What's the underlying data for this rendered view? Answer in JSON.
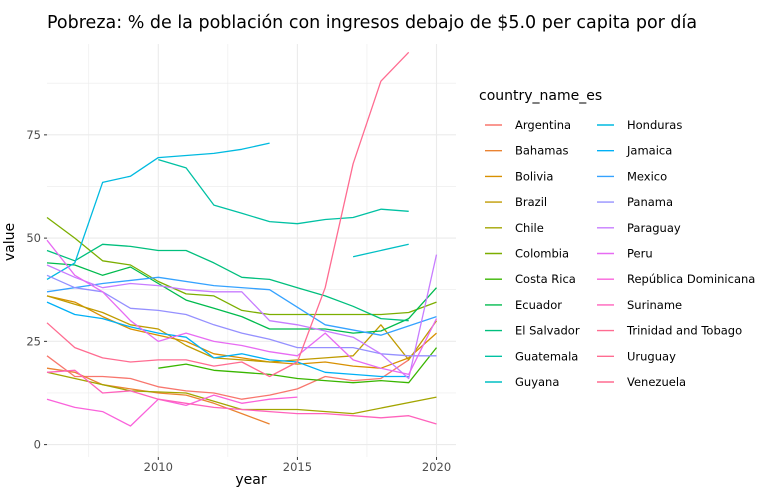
{
  "chart_data": {
    "type": "line",
    "title": "Pobreza: % de la población con ingresos debajo de $5.0 per capita por día",
    "xlabel": "year",
    "ylabel": "value",
    "xlim": [
      2006,
      2020.7
    ],
    "ylim": [
      -3,
      97
    ],
    "x_ticks": [
      2010,
      2015,
      2020
    ],
    "y_ticks": [
      0,
      25,
      50,
      75
    ],
    "legend_title": "country_name_es",
    "series": [
      {
        "name": "Argentina",
        "color": "#F8766D",
        "x": [
          2006,
          2007,
          2008,
          2009,
          2010,
          2011,
          2012,
          2013,
          2014,
          2015,
          2016,
          2017,
          2018,
          2019
        ],
        "y": [
          21.5,
          16.5,
          16.5,
          16.0,
          14.0,
          13.0,
          12.5,
          11.0,
          12.0,
          13.5,
          16.5,
          15.5,
          16.0,
          20.5
        ]
      },
      {
        "name": "Bahamas",
        "color": "#EA8331",
        "x": [
          2006,
          2007,
          2008,
          2009,
          2010,
          2011,
          2012,
          2013,
          2014
        ],
        "y": [
          18.5,
          17.5,
          14.5,
          13.5,
          12.5,
          12.0,
          10.0,
          7.5,
          5.0
        ]
      },
      {
        "name": "Bolivia",
        "color": "#D89000",
        "x": [
          2006,
          2007,
          2008,
          2009,
          2010,
          2011,
          2012,
          2013,
          2014,
          2015,
          2016,
          2017,
          2018,
          2019,
          2020
        ],
        "y": [
          36.0,
          34.5,
          31.0,
          28.0,
          26.5,
          25.0,
          22.0,
          21.0,
          20.0,
          19.5,
          20.0,
          19.0,
          18.5,
          21.0,
          27.0
        ]
      },
      {
        "name": "Brazil",
        "color": "#C09B00",
        "x": [
          2006,
          2007,
          2008,
          2009,
          2010,
          2011,
          2012,
          2013,
          2014,
          2015,
          2016,
          2017,
          2018,
          2019,
          2020
        ],
        "y": [
          36.0,
          34.0,
          32.0,
          29.0,
          28.0,
          24.0,
          21.0,
          20.5,
          20.0,
          20.5,
          21.0,
          21.5,
          29.0,
          20.5,
          30.0
        ]
      },
      {
        "name": "Chile",
        "color": "#A3A500",
        "x": [
          2006,
          2009,
          2011,
          2013,
          2015,
          2017,
          2020
        ],
        "y": [
          17.5,
          13.0,
          12.5,
          8.5,
          8.5,
          7.5,
          11.5
        ]
      },
      {
        "name": "Colombia",
        "color": "#7CAE00",
        "x": [
          2006,
          2007,
          2008,
          2009,
          2010,
          2011,
          2012,
          2013,
          2014,
          2015,
          2016,
          2017,
          2018,
          2019,
          2020
        ],
        "y": [
          55.0,
          50.0,
          44.5,
          43.5,
          39.5,
          36.5,
          36.0,
          32.5,
          31.5,
          31.5,
          31.5,
          31.5,
          31.5,
          32.0,
          34.5
        ]
      },
      {
        "name": "Costa Rica",
        "color": "#39B600",
        "x": [
          2010,
          2011,
          2012,
          2013,
          2014,
          2015,
          2016,
          2017,
          2018,
          2019,
          2020
        ],
        "y": [
          18.5,
          19.5,
          18.0,
          17.5,
          17.0,
          16.0,
          15.5,
          15.0,
          15.5,
          15.0,
          23.5
        ]
      },
      {
        "name": "Ecuador",
        "color": "#00BB4E",
        "x": [
          2006,
          2007,
          2008,
          2009,
          2010,
          2011,
          2012,
          2013,
          2014,
          2015,
          2016,
          2017,
          2018,
          2019,
          2020
        ],
        "y": [
          44.0,
          43.5,
          41.0,
          43.0,
          39.0,
          35.0,
          33.0,
          31.0,
          28.0,
          28.0,
          28.0,
          27.0,
          27.5,
          30.5,
          38.0
        ]
      },
      {
        "name": "El Salvador",
        "color": "#00BF7D",
        "x": [
          2006,
          2007,
          2008,
          2009,
          2010,
          2011,
          2012,
          2013,
          2014,
          2015,
          2016,
          2017,
          2018,
          2019
        ],
        "y": [
          47.0,
          44.5,
          48.5,
          48.0,
          47.0,
          47.0,
          44.0,
          40.5,
          40.0,
          38.0,
          36.0,
          33.5,
          30.5,
          30.0
        ]
      },
      {
        "name": "Guatemala",
        "color": "#00C1A3",
        "x": [
          2010,
          2011,
          2012,
          2013,
          2014,
          2015,
          2016,
          2017,
          2018,
          2019
        ],
        "y": [
          69.0,
          67.0,
          58.0,
          56.0,
          54.0,
          53.5,
          54.5,
          55.0,
          57.0,
          56.5
        ]
      },
      {
        "name": "Guyana",
        "color": "#00BFC4",
        "x": [
          2017,
          2019
        ],
        "y": [
          45.5,
          48.5
        ]
      },
      {
        "name": "Honduras",
        "color": "#00BAE0",
        "x": [
          2006,
          2007,
          2008,
          2009,
          2010,
          2011,
          2012,
          2013,
          2014
        ],
        "y": [
          40.0,
          44.0,
          63.5,
          65.0,
          69.5,
          70.0,
          70.5,
          71.5,
          73.0
        ]
      },
      {
        "name": "Jamaica",
        "color": "#00B0F6",
        "x": [
          2006,
          2007,
          2008,
          2009,
          2010,
          2011,
          2012,
          2013,
          2014,
          2015,
          2016,
          2017,
          2018,
          2019
        ],
        "y": [
          34.5,
          31.5,
          30.5,
          28.5,
          27.0,
          26.0,
          21.0,
          22.0,
          20.5,
          20.0,
          17.5,
          17.0,
          16.5,
          16.5
        ]
      },
      {
        "name": "Mexico",
        "color": "#35A2FF",
        "x": [
          2006,
          2008,
          2010,
          2012,
          2014,
          2016,
          2018,
          2020
        ],
        "y": [
          37.0,
          39.0,
          40.5,
          38.5,
          37.5,
          29.0,
          26.5,
          31.0
        ]
      },
      {
        "name": "Panama",
        "color": "#9590FF",
        "x": [
          2006,
          2007,
          2008,
          2009,
          2010,
          2011,
          2012,
          2013,
          2014,
          2015,
          2016,
          2017,
          2018,
          2019,
          2020
        ],
        "y": [
          41.0,
          38.0,
          37.0,
          33.0,
          32.5,
          31.5,
          29.0,
          27.0,
          25.5,
          23.5,
          23.5,
          23.5,
          22.0,
          21.5,
          21.5
        ]
      },
      {
        "name": "Paraguay",
        "color": "#C77CFF",
        "x": [
          2006,
          2007,
          2008,
          2009,
          2010,
          2011,
          2012,
          2013,
          2014,
          2015,
          2016,
          2017,
          2018,
          2019,
          2020
        ],
        "y": [
          43.5,
          40.5,
          38.0,
          39.0,
          38.5,
          37.5,
          37.0,
          37.0,
          30.0,
          29.0,
          27.5,
          26.0,
          22.0,
          16.0,
          46.0
        ]
      },
      {
        "name": "Peru",
        "color": "#E76BF3",
        "x": [
          2006,
          2007,
          2008,
          2009,
          2010,
          2011,
          2012,
          2013,
          2014,
          2015,
          2016,
          2017,
          2018,
          2019,
          2020
        ],
        "y": [
          49.5,
          41.0,
          37.0,
          30.0,
          25.0,
          27.0,
          25.0,
          24.0,
          22.5,
          21.5,
          27.0,
          20.5,
          18.5,
          17.0,
          30.5
        ]
      },
      {
        "name": "República Dominicana",
        "color": "#FA62DB",
        "x": [
          2006,
          2007,
          2008,
          2009,
          2010,
          2011,
          2012,
          2013,
          2014,
          2015
        ],
        "y": [
          11.0,
          9.0,
          8.0,
          4.5,
          11.0,
          9.5,
          12.0,
          10.0,
          11.0,
          11.5
        ]
      },
      {
        "name": "Suriname",
        "color": "#FF62BC",
        "x": [
          2006,
          2007,
          2008,
          2009,
          2010,
          2011,
          2012,
          2013,
          2014,
          2015,
          2016,
          2017,
          2018,
          2019,
          2020
        ],
        "y": [
          17.5,
          18.0,
          12.5,
          13.0,
          11.0,
          10.0,
          9.0,
          8.5,
          8.0,
          7.5,
          7.5,
          7.0,
          6.5,
          7.0,
          5.0
        ]
      },
      {
        "name": "Trinidad and Tobago",
        "color": "#FF6C91",
        "x": [
          2006,
          2007,
          2008,
          2009,
          2010,
          2011,
          2012,
          2013,
          2014,
          2015,
          2016,
          2017,
          2018,
          2019
        ],
        "y": [
          29.5,
          23.5,
          21.0,
          20.0,
          20.5,
          20.5,
          19.0,
          20.0,
          16.5,
          20.0,
          38.0,
          68.0,
          88.0,
          95.0
        ]
      },
      {
        "name": "Uruguay",
        "color": "#FF6C91",
        "x": [],
        "y": []
      },
      {
        "name": "Venezuela",
        "color": "#FF6C91",
        "x": [],
        "y": []
      }
    ]
  }
}
